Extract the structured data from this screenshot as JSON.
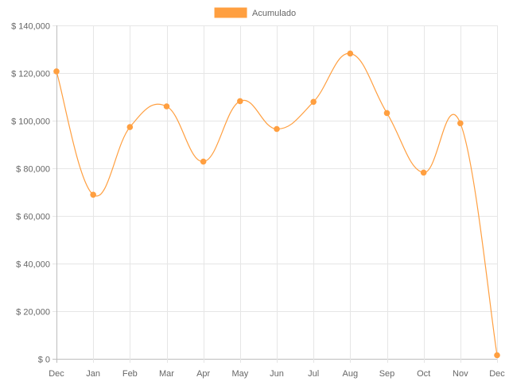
{
  "chart_data": {
    "type": "line",
    "categories": [
      "Dec",
      "Jan",
      "Feb",
      "Mar",
      "Apr",
      "May",
      "Jun",
      "Jul",
      "Aug",
      "Sep",
      "Oct",
      "Nov",
      "Dec"
    ],
    "series": [
      {
        "name": "Acumulado",
        "color": "#FF9F40",
        "values": [
          120700,
          68900,
          97300,
          106000,
          82800,
          108200,
          96500,
          107900,
          128200,
          103200,
          78200,
          98900,
          1500
        ]
      }
    ],
    "title": "",
    "xlabel": "",
    "ylabel": "",
    "ylim": [
      0,
      140000
    ],
    "yticks": [
      0,
      20000,
      40000,
      60000,
      80000,
      100000,
      120000,
      140000
    ],
    "ytick_labels": [
      "$ 0",
      "$ 20,000",
      "$ 40,000",
      "$ 60,000",
      "$ 80,000",
      "$ 100,000",
      "$ 120,000",
      "$ 140,000"
    ],
    "grid": true,
    "legend_position": "top-center",
    "smooth": true
  }
}
